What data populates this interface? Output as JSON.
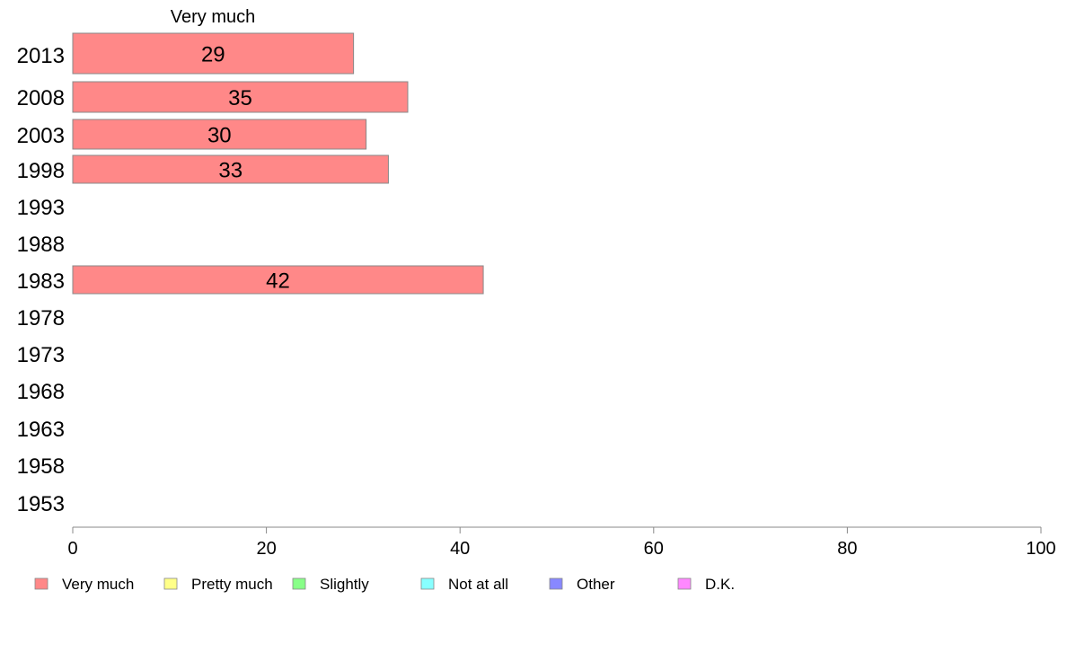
{
  "chart_data": {
    "type": "bar",
    "orientation": "horizontal",
    "series_header": "Very much",
    "categories": [
      "2013",
      "2008",
      "2003",
      "1998",
      "1993",
      "1988",
      "1983",
      "1978",
      "1973",
      "1968",
      "1963",
      "1958",
      "1953"
    ],
    "series": [
      {
        "name": "Very much",
        "values": [
          29,
          34.6,
          30.3,
          32.6,
          null,
          null,
          42.4,
          null,
          null,
          null,
          null,
          null,
          null
        ],
        "labels": [
          "29",
          "35",
          "30",
          "33",
          "",
          "",
          "42",
          "",
          "",
          "",
          "",
          "",
          ""
        ]
      }
    ],
    "xlim": [
      0,
      100
    ],
    "xticks": [
      0,
      20,
      40,
      60,
      80,
      100
    ],
    "grid": false,
    "legend": {
      "placement": "bottom",
      "items": [
        {
          "label": "Very much",
          "color": "#ff8888"
        },
        {
          "label": "Pretty much",
          "color": "#ffff88"
        },
        {
          "label": "Slightly",
          "color": "#88ff88"
        },
        {
          "label": "Not at all",
          "color": "#88ffff"
        },
        {
          "label": "Other",
          "color": "#8888ff"
        },
        {
          "label": "D.K.",
          "color": "#ff88ff"
        }
      ]
    },
    "colors": {
      "bar": "#ff8888",
      "bar_stroke": "#888888",
      "axis": "#888888"
    }
  }
}
